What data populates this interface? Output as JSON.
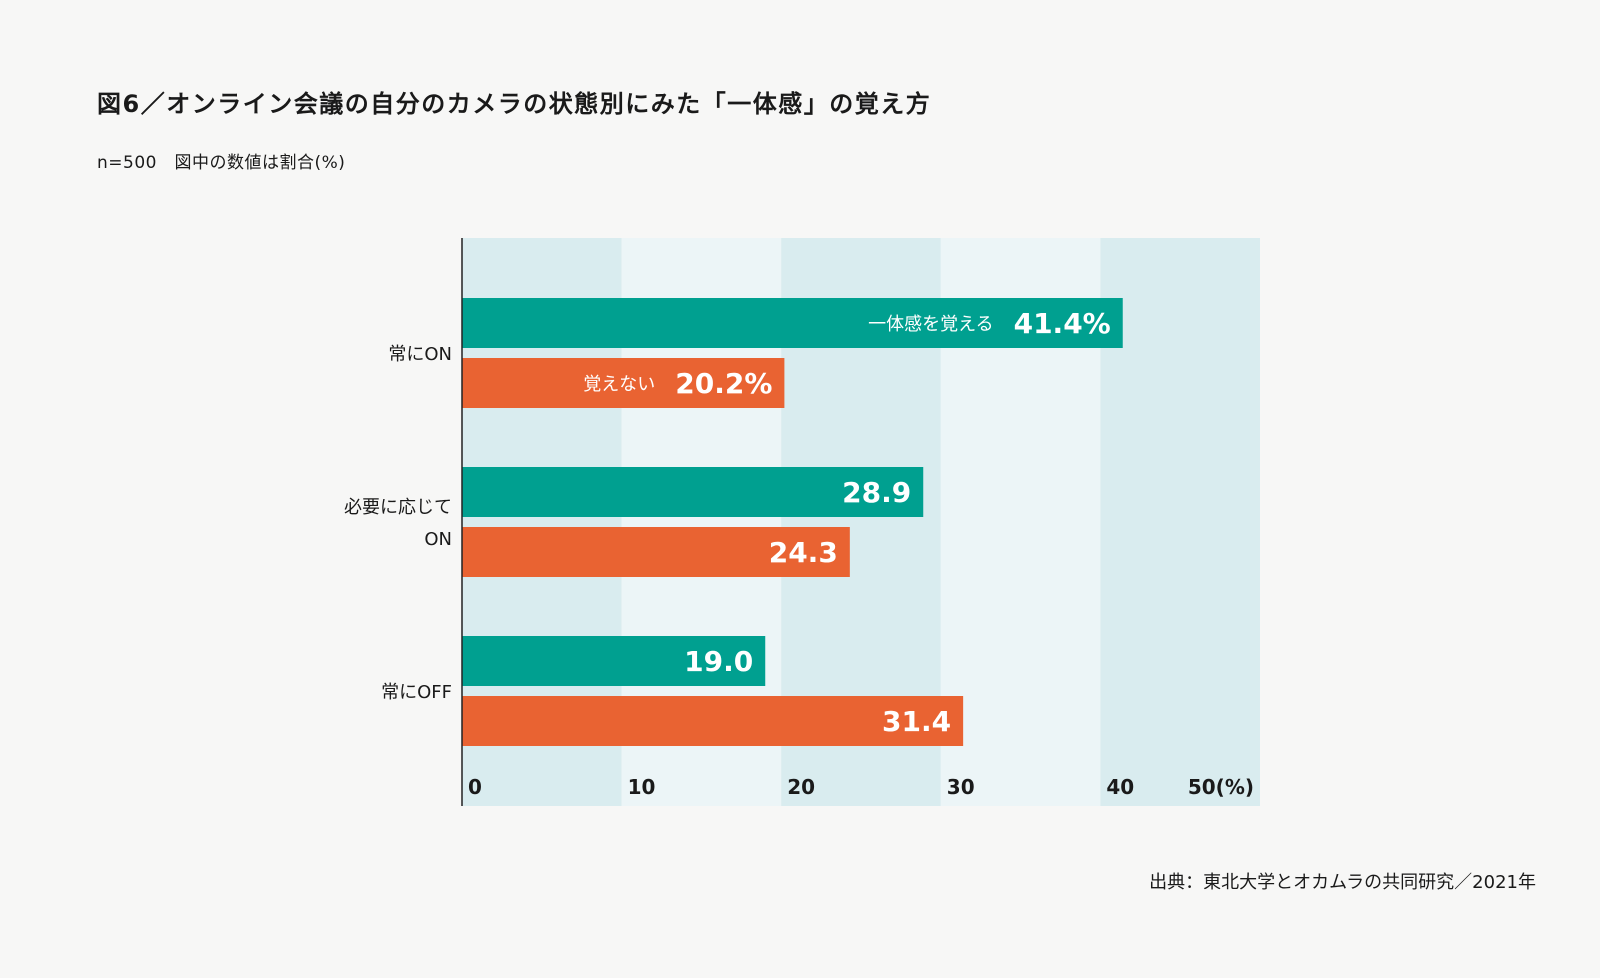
{
  "title": "図6／オンライン会議の自分のカメラの状態別にみた「一体感」の覚え方",
  "subtitle": "n=500　図中の数値は割合(%)",
  "source": "出典：東北大学とオカムラの共同研究／2021年",
  "colors": {
    "series_1": "#00a090",
    "series_2": "#e96332",
    "band_dark": "#d9ecef",
    "band_light": "#ecf5f7",
    "axis": "#222222"
  },
  "chart_data": {
    "type": "bar",
    "orientation": "horizontal",
    "categories": [
      "常にON",
      "必要に応じて\nON",
      "常にOFF"
    ],
    "series": [
      {
        "name": "一体感を覚える",
        "values": [
          41.4,
          28.9,
          19.0
        ]
      },
      {
        "name": "覚えない",
        "values": [
          20.2,
          24.3,
          31.4
        ]
      }
    ],
    "value_labels": [
      [
        "41.4%",
        "28.9",
        "19.0"
      ],
      [
        "20.2%",
        "24.3",
        "31.4"
      ]
    ],
    "inline_series_labels": [
      {
        "series": 0,
        "category": 0,
        "text": "一体感を覚える"
      },
      {
        "series": 1,
        "category": 0,
        "text": "覚えない"
      }
    ],
    "xlim": [
      0,
      50
    ],
    "xticks": [
      "0",
      "10",
      "20",
      "30",
      "40",
      "50(%)"
    ],
    "xlabel": "",
    "ylabel": "",
    "grid": "alternating vertical bands"
  }
}
